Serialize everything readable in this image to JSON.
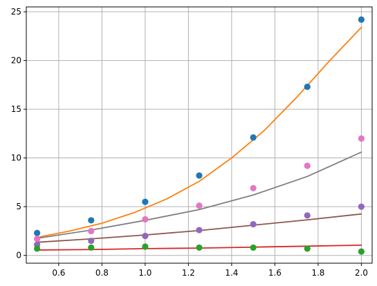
{
  "chart_data": {
    "type": "scatter",
    "title": "",
    "xlabel": "",
    "ylabel": "",
    "xlim": [
      0.45,
      2.05
    ],
    "ylim": [
      -0.8,
      25.5
    ],
    "grid": true,
    "legend": "none",
    "x_ticks": [
      0.6,
      0.8,
      1.0,
      1.2,
      1.4,
      1.6,
      1.8,
      2.0
    ],
    "x_tick_labels": [
      "0.6",
      "0.8",
      "1.0",
      "1.2",
      "1.4",
      "1.6",
      "1.8",
      "2.0"
    ],
    "y_ticks": [
      0,
      5,
      10,
      15,
      20,
      25
    ],
    "y_tick_labels": [
      "0",
      "5",
      "10",
      "15",
      "20",
      "25"
    ],
    "scatter_series": [
      {
        "color": "#1f77b4",
        "x": [
          0.5,
          0.75,
          1.0,
          1.25,
          1.5,
          1.75,
          2.0
        ],
        "y": [
          2.3,
          3.6,
          5.5,
          8.2,
          12.1,
          17.3,
          24.2
        ]
      },
      {
        "color": "#e377c2",
        "x": [
          0.5,
          0.75,
          1.0,
          1.25,
          1.5,
          1.75,
          2.0
        ],
        "y": [
          1.7,
          2.5,
          3.7,
          5.1,
          6.9,
          9.2,
          12.0
        ]
      },
      {
        "color": "#9467bd",
        "x": [
          0.5,
          0.75,
          1.0,
          1.25,
          1.5,
          1.75,
          2.0
        ],
        "y": [
          1.1,
          1.5,
          2.0,
          2.6,
          3.2,
          4.1,
          5.0
        ]
      },
      {
        "color": "#2ca02c",
        "x": [
          0.5,
          0.75,
          1.0,
          1.25,
          1.5,
          1.75,
          2.0
        ],
        "y": [
          0.7,
          0.8,
          0.9,
          0.8,
          0.8,
          0.7,
          0.4
        ]
      }
    ],
    "line_series": [
      {
        "color": "#ff7f0e",
        "x": [
          0.5,
          0.65,
          0.8,
          0.95,
          1.1,
          1.25,
          1.4,
          1.55,
          1.7,
          1.85,
          2.0
        ],
        "y": [
          1.85,
          2.5,
          3.3,
          4.4,
          5.8,
          7.6,
          10.0,
          12.8,
          16.2,
          19.9,
          23.4
        ]
      },
      {
        "color": "#7f7f7f",
        "x": [
          0.5,
          0.75,
          1.0,
          1.25,
          1.5,
          1.75,
          2.0
        ],
        "y": [
          1.75,
          2.6,
          3.6,
          4.7,
          6.2,
          8.1,
          10.6
        ]
      },
      {
        "color": "#8c564b",
        "x": [
          0.5,
          0.75,
          1.0,
          1.25,
          1.5,
          1.75,
          2.0
        ],
        "y": [
          1.35,
          1.7,
          2.1,
          2.55,
          3.1,
          3.65,
          4.25
        ]
      },
      {
        "color": "#d62728",
        "x": [
          0.5,
          0.75,
          1.0,
          1.25,
          1.5,
          1.75,
          2.0
        ],
        "y": [
          0.55,
          0.6,
          0.7,
          0.75,
          0.85,
          0.95,
          1.05
        ]
      }
    ]
  }
}
